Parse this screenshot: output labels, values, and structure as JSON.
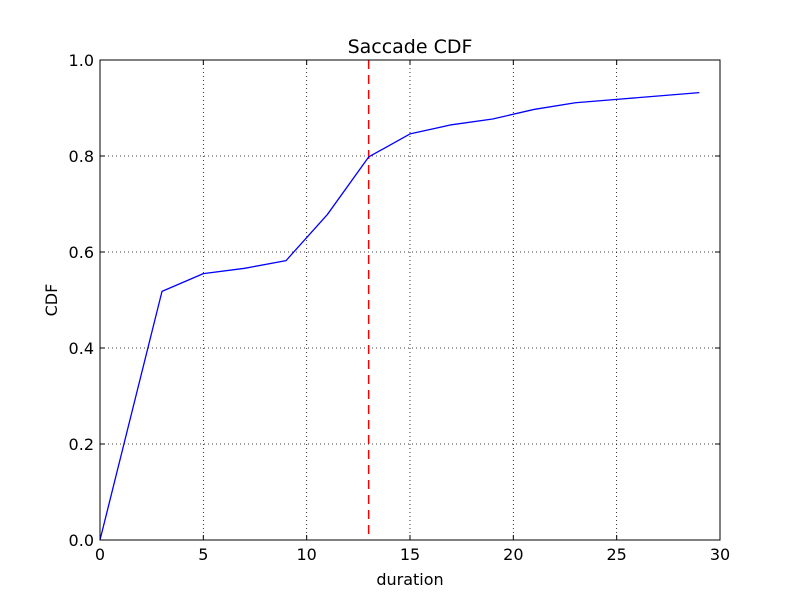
{
  "chart_data": {
    "type": "line",
    "title": "Saccade CDF",
    "xlabel": "duration",
    "ylabel": "CDF",
    "xlim": [
      0,
      30
    ],
    "ylim": [
      0.0,
      1.0
    ],
    "xticks": [
      "0",
      "5",
      "10",
      "15",
      "20",
      "25",
      "30"
    ],
    "yticks": [
      "0.0",
      "0.2",
      "0.4",
      "0.6",
      "0.8",
      "1.0"
    ],
    "grid": true,
    "series": [
      {
        "color": "#0000ff",
        "style": "solid",
        "x": [
          0,
          3,
          5,
          7,
          9,
          11,
          13,
          15,
          17,
          19,
          21,
          23,
          25,
          27,
          29
        ],
        "y": [
          0.0,
          0.518,
          0.555,
          0.566,
          0.582,
          0.678,
          0.798,
          0.846,
          0.865,
          0.877,
          0.897,
          0.911,
          0.918,
          0.925,
          0.932
        ]
      }
    ],
    "reference_lines": [
      {
        "orientation": "vertical",
        "x": 13,
        "color": "#ff0000",
        "style": "dashed"
      }
    ]
  }
}
